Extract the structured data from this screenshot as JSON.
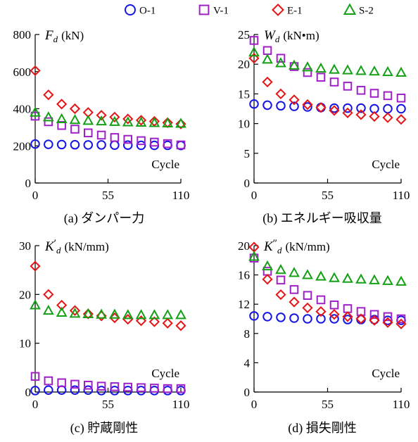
{
  "legend": [
    {
      "name": "O-1",
      "marker": "circle",
      "color": "#1414e6"
    },
    {
      "name": "V-1",
      "marker": "square",
      "color": "#a020c8"
    },
    {
      "name": "E-1",
      "marker": "diamond",
      "color": "#e61414"
    },
    {
      "name": "S-2",
      "marker": "triangle",
      "color": "#14a014"
    }
  ],
  "chart_data": [
    {
      "type": "scatter",
      "caption": "(a) ダンパー力",
      "ylabel_sym": "F",
      "ylabel_sub": "d",
      "ylabel_unit": "(kN)",
      "xlabel": "Cycle",
      "xticks": [
        0,
        55,
        110
      ],
      "yticks": [
        0,
        200,
        400,
        600,
        800
      ],
      "xlim": [
        0,
        110
      ],
      "ylim": [
        0,
        800
      ],
      "x": [
        0,
        10,
        20,
        30,
        40,
        50,
        60,
        70,
        80,
        90,
        100,
        110
      ],
      "series": [
        {
          "name": "O-1",
          "values": [
            210,
            208,
            207,
            206,
            205,
            205,
            204,
            204,
            203,
            203,
            203,
            202
          ]
        },
        {
          "name": "V-1",
          "values": [
            360,
            330,
            310,
            290,
            270,
            258,
            245,
            235,
            228,
            220,
            212,
            205
          ]
        },
        {
          "name": "E-1",
          "values": [
            605,
            475,
            425,
            400,
            380,
            365,
            355,
            345,
            338,
            332,
            325,
            318
          ]
        },
        {
          "name": "S-2",
          "values": [
            380,
            355,
            345,
            340,
            336,
            333,
            330,
            328,
            326,
            324,
            322,
            320
          ]
        }
      ]
    },
    {
      "type": "scatter",
      "caption": "(b) エネルギー吸収量",
      "ylabel_sym": "W",
      "ylabel_sub": "d",
      "ylabel_unit": "(kN•m)",
      "xlabel": "Cycle",
      "xticks": [
        0,
        55,
        110
      ],
      "yticks": [
        0,
        5,
        10,
        15,
        20,
        25
      ],
      "xlim": [
        0,
        110
      ],
      "ylim": [
        0,
        25
      ],
      "x": [
        0,
        10,
        20,
        30,
        40,
        50,
        60,
        70,
        80,
        90,
        100,
        110
      ],
      "series": [
        {
          "name": "O-1",
          "values": [
            13.3,
            13.1,
            13.0,
            12.9,
            12.8,
            12.7,
            12.6,
            12.6,
            12.6,
            12.5,
            12.5,
            12.5
          ]
        },
        {
          "name": "V-1",
          "values": [
            24.0,
            22.3,
            21.0,
            19.6,
            18.6,
            17.8,
            17.0,
            16.3,
            15.6,
            15.1,
            14.7,
            14.3
          ]
        },
        {
          "name": "E-1",
          "values": [
            21.0,
            17.0,
            15.0,
            14.0,
            13.2,
            12.7,
            12.2,
            11.8,
            11.5,
            11.2,
            11.0,
            10.7
          ]
        },
        {
          "name": "S-2",
          "values": [
            22.0,
            20.8,
            20.2,
            19.8,
            19.5,
            19.3,
            19.1,
            19.0,
            18.9,
            18.8,
            18.7,
            18.6
          ]
        }
      ]
    },
    {
      "type": "scatter",
      "caption": "(c) 貯蔵剛性",
      "ylabel_sym": "K",
      "ylabel_prime": "′",
      "ylabel_sub": "d",
      "ylabel_unit": "(kN/mm)",
      "xlabel": "Cycle",
      "xticks": [
        0,
        55,
        110
      ],
      "yticks": [
        0,
        10,
        20,
        30
      ],
      "xlim": [
        0,
        110
      ],
      "ylim": [
        0,
        30
      ],
      "x": [
        0,
        10,
        20,
        30,
        40,
        50,
        60,
        70,
        80,
        90,
        100,
        110
      ],
      "series": [
        {
          "name": "O-1",
          "values": [
            0.3,
            0.4,
            0.4,
            0.4,
            0.4,
            0.3,
            0.3,
            0.3,
            0.3,
            0.3,
            0.3,
            0.3
          ]
        },
        {
          "name": "V-1",
          "values": [
            3.2,
            2.3,
            1.9,
            1.6,
            1.4,
            1.2,
            1.1,
            1.0,
            0.9,
            0.8,
            0.7,
            0.7
          ]
        },
        {
          "name": "E-1",
          "values": [
            25.8,
            20.0,
            17.8,
            16.7,
            16.0,
            15.6,
            15.2,
            14.9,
            14.6,
            14.4,
            14.1,
            13.6
          ]
        },
        {
          "name": "S-2",
          "values": [
            17.8,
            16.7,
            16.3,
            16.1,
            16.0,
            15.9,
            15.9,
            15.8,
            15.8,
            15.8,
            15.8,
            15.8
          ]
        }
      ]
    },
    {
      "type": "scatter",
      "caption": "(d) 損失剛性",
      "ylabel_sym": "K",
      "ylabel_prime": "″",
      "ylabel_sub": "d",
      "ylabel_unit": "(kN/mm)",
      "xlabel": "Cycle",
      "xticks": [
        0,
        55,
        110
      ],
      "yticks": [
        0,
        4,
        8,
        12,
        16,
        20
      ],
      "xlim": [
        0,
        110
      ],
      "ylim": [
        0,
        20
      ],
      "x": [
        0,
        10,
        20,
        30,
        40,
        50,
        60,
        70,
        80,
        90,
        100,
        110
      ],
      "series": [
        {
          "name": "O-1",
          "values": [
            10.4,
            10.3,
            10.2,
            10.1,
            10.0,
            10.0,
            10.0,
            9.9,
            9.9,
            9.9,
            9.8,
            9.8
          ]
        },
        {
          "name": "V-1",
          "values": [
            18.3,
            16.5,
            15.3,
            14.0,
            13.2,
            12.6,
            11.9,
            11.4,
            11.0,
            10.6,
            10.3,
            10.0
          ]
        },
        {
          "name": "E-1",
          "values": [
            19.8,
            15.4,
            13.3,
            12.3,
            11.5,
            11.0,
            10.6,
            10.3,
            10.0,
            9.8,
            9.5,
            9.3
          ]
        },
        {
          "name": "S-2",
          "values": [
            18.5,
            17.2,
            16.7,
            16.3,
            16.0,
            15.8,
            15.6,
            15.5,
            15.4,
            15.3,
            15.2,
            15.1
          ]
        }
      ]
    }
  ]
}
